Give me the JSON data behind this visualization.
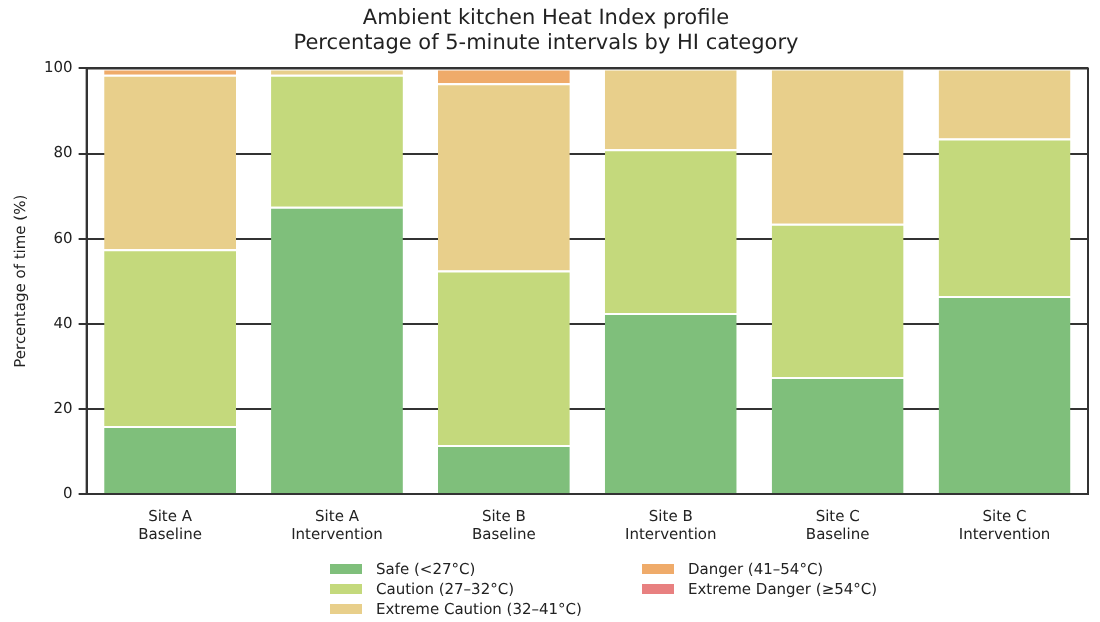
{
  "chart_data": {
    "type": "bar",
    "title": "Ambient kitchen Heat Index profile",
    "subtitle": "Percentage of 5-minute intervals by HI category",
    "ylabel": "Percentage of time (%)",
    "categories": [
      "Site A\nBaseline",
      "Site A\nIntervention",
      "Site B\nBaseline",
      "Site B\nIntervention",
      "Site C\nBaseline",
      "Site C\nIntervention"
    ],
    "stacked": true,
    "ylim": [
      0,
      100
    ],
    "yticks": [
      0,
      20,
      40,
      60,
      80,
      100
    ],
    "grid": "y",
    "legend": "bottom",
    "series": [
      {
        "name": "Safe (<27°C)",
        "color": "#7fbf7b",
        "values": [
          16,
          67.5,
          11.5,
          42.5,
          27.5,
          46.5
        ]
      },
      {
        "name": "Caution (27–32°C)",
        "color": "#c4d97c",
        "values": [
          41.5,
          31,
          41,
          38.5,
          36,
          37
        ]
      },
      {
        "name": "Extreme Caution (32–41°C)",
        "color": "#e8cf8b",
        "values": [
          41,
          1.5,
          44,
          19,
          36.5,
          16.5
        ]
      },
      {
        "name": "Danger (41–54°C)",
        "color": "#efab6a",
        "values": [
          1.5,
          0,
          3.5,
          0,
          0,
          0
        ]
      },
      {
        "name": "Extreme Danger (≥54°C)",
        "color": "#e88080",
        "values": [
          0,
          0,
          0,
          0,
          0,
          0
        ]
      }
    ]
  }
}
